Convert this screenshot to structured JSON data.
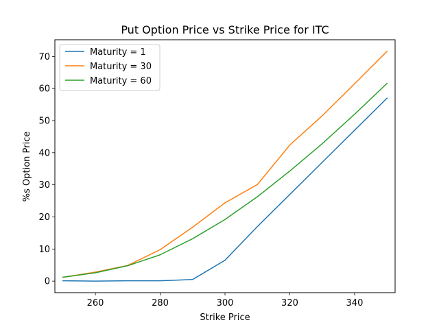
{
  "chart_data": {
    "type": "line",
    "title": "Put Option Price vs Strike Price for ITC",
    "xlabel": "Strike Price",
    "ylabel": "%s Option Price",
    "xlim": [
      247.5,
      352.5
    ],
    "ylim": [
      -3.6,
      75.2
    ],
    "xticks": [
      260,
      280,
      300,
      320,
      340
    ],
    "yticks": [
      0,
      10,
      20,
      30,
      40,
      50,
      60,
      70
    ],
    "grid": false,
    "legend_position": "top-left",
    "x": [
      250,
      260,
      270,
      280,
      290,
      300,
      310,
      320,
      330,
      340,
      350
    ],
    "series": [
      {
        "name": "Maturity = 1",
        "color": "#1f77b4",
        "values": [
          0.1,
          0.0,
          0.1,
          0.1,
          0.5,
          6.5,
          17.0,
          27.0,
          37.0,
          47.0,
          57.0
        ]
      },
      {
        "name": "Maturity = 30",
        "color": "#ff7f0e",
        "values": [
          1.2,
          2.8,
          4.9,
          9.8,
          16.8,
          24.4,
          30.1,
          42.4,
          51.5,
          61.5,
          71.6
        ]
      },
      {
        "name": "Maturity = 60",
        "color": "#2ca02c",
        "values": [
          1.2,
          2.6,
          4.8,
          8.2,
          13.2,
          19.2,
          26.3,
          34.3,
          42.8,
          52.0,
          61.6
        ]
      }
    ]
  }
}
